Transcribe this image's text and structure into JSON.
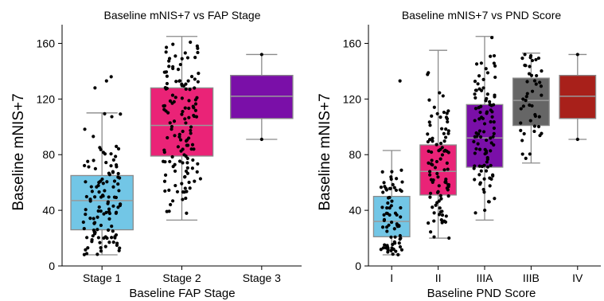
{
  "chart_data": [
    {
      "type": "box",
      "title": "Baseline mNIS+7 vs FAP Stage",
      "xlabel": "Baseline FAP Stage",
      "ylabel": "Baseline mNIS+7",
      "ylim": [
        0,
        170
      ],
      "yticks": [
        0,
        40,
        80,
        120,
        160
      ],
      "grid": false,
      "categories": [
        "Stage 1",
        "Stage 2",
        "Stage 3"
      ],
      "colors": [
        "#72c6e6",
        "#ea2377",
        "#7a0fa8"
      ],
      "boxes": [
        {
          "q1": 26,
          "median": 47,
          "q3": 65,
          "whisker_low": 8,
          "whisker_high": 110,
          "outliers": [
            128,
            133,
            136
          ]
        },
        {
          "q1": 79,
          "median": 101,
          "q3": 128,
          "whisker_low": 33,
          "whisker_high": 165,
          "outliers": []
        },
        {
          "q1": 106,
          "median": 122,
          "q3": 137,
          "whisker_low": 91,
          "whisker_high": 152,
          "outliers": []
        }
      ],
      "points_count": [
        120,
        140,
        2
      ],
      "points_seed": [
        11,
        23,
        37
      ]
    },
    {
      "type": "box",
      "title": "Baseline mNIS+7 vs PND Score",
      "xlabel": "Baseline PND Score",
      "ylabel": "Baseline mNIS+7",
      "ylim": [
        0,
        170
      ],
      "yticks": [
        0,
        40,
        80,
        120,
        160
      ],
      "grid": false,
      "categories": [
        "I",
        "II",
        "IIIA",
        "IIIB",
        "IV"
      ],
      "colors": [
        "#72c6e6",
        "#ea2377",
        "#7a0fa8",
        "#666666",
        "#a8201a"
      ],
      "boxes": [
        {
          "q1": 21,
          "median": 32,
          "q3": 50,
          "whisker_low": 8,
          "whisker_high": 83,
          "outliers": [
            133
          ]
        },
        {
          "q1": 51,
          "median": 68,
          "q3": 87,
          "whisker_low": 20,
          "whisker_high": 155,
          "outliers": []
        },
        {
          "q1": 71,
          "median": 92,
          "q3": 116,
          "whisker_low": 33,
          "whisker_high": 165,
          "outliers": []
        },
        {
          "q1": 101,
          "median": 119,
          "q3": 135,
          "whisker_low": 74,
          "whisker_high": 153,
          "outliers": []
        },
        {
          "q1": 106,
          "median": 122,
          "q3": 137,
          "whisker_low": 91,
          "whisker_high": 152,
          "outliers": []
        }
      ],
      "points_count": [
        75,
        95,
        100,
        45,
        2
      ],
      "points_seed": [
        5,
        17,
        29,
        41,
        53
      ]
    }
  ]
}
